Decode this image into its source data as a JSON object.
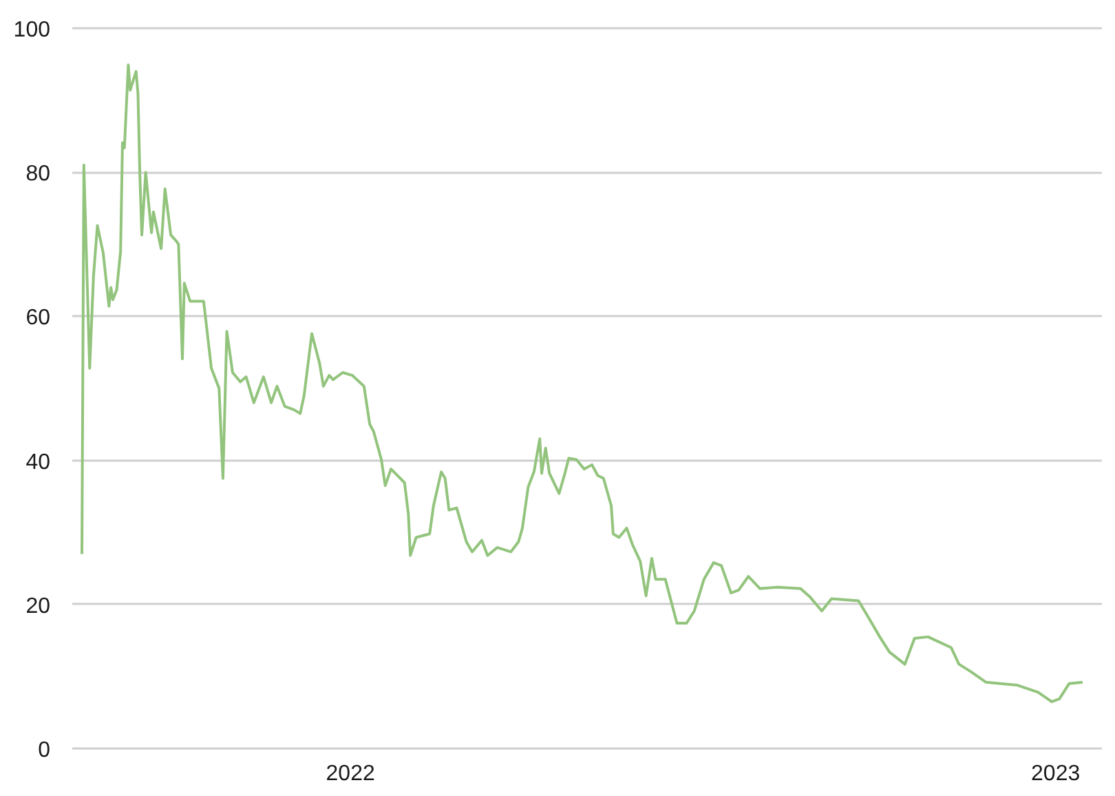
{
  "chart_data": {
    "type": "line",
    "x": [
      "2021-08-15",
      "2021-08-16",
      "2021-08-19",
      "2021-08-21",
      "2021-08-23",
      "2021-08-26",
      "2021-08-29",
      "2021-08-30",
      "2021-08-31",
      "2021-09-02",
      "2021-09-04",
      "2021-09-05",
      "2021-09-06",
      "2021-09-08",
      "2021-09-09",
      "2021-09-12",
      "2021-09-13",
      "2021-09-14",
      "2021-09-15",
      "2021-09-17",
      "2021-09-20",
      "2021-09-21",
      "2021-09-25",
      "2021-09-27",
      "2021-09-30",
      "2021-10-03",
      "2021-10-04",
      "2021-10-06",
      "2021-10-07",
      "2021-10-10",
      "2021-10-17",
      "2021-10-21",
      "2021-10-25",
      "2021-10-27",
      "2021-10-29",
      "2021-11-01",
      "2021-11-05",
      "2021-11-08",
      "2021-11-12",
      "2021-11-17",
      "2021-11-21",
      "2021-11-24",
      "2021-11-28",
      "2021-12-03",
      "2021-12-06",
      "2021-12-08",
      "2021-12-12",
      "2021-12-16",
      "2021-12-18",
      "2021-12-21",
      "2021-12-23",
      "2021-12-28",
      "2022-01-02",
      "2022-01-08",
      "2022-01-11",
      "2022-01-13",
      "2022-01-17",
      "2022-01-19",
      "2022-01-22",
      "2022-01-29",
      "2022-01-31",
      "2022-02-01",
      "2022-02-04",
      "2022-02-11",
      "2022-02-13",
      "2022-02-17",
      "2022-02-19",
      "2022-02-21",
      "2022-02-25",
      "2022-03-02",
      "2022-03-05",
      "2022-03-10",
      "2022-03-13",
      "2022-03-18",
      "2022-03-25",
      "2022-03-29",
      "2022-03-31",
      "2022-04-03",
      "2022-04-06",
      "2022-04-09",
      "2022-04-10",
      "2022-04-12",
      "2022-04-14",
      "2022-04-19",
      "2022-04-22",
      "2022-04-24",
      "2022-04-28",
      "2022-05-02",
      "2022-05-06",
      "2022-05-09",
      "2022-05-12",
      "2022-05-16",
      "2022-05-17",
      "2022-05-20",
      "2022-05-24",
      "2022-05-27",
      "2022-05-31",
      "2022-06-03",
      "2022-06-06",
      "2022-06-08",
      "2022-06-13",
      "2022-06-19",
      "2022-06-24",
      "2022-06-28",
      "2022-07-03",
      "2022-07-08",
      "2022-07-12",
      "2022-07-17",
      "2022-07-21",
      "2022-07-26",
      "2022-08-01",
      "2022-08-10",
      "2022-08-22",
      "2022-08-27",
      "2022-09-02",
      "2022-09-07",
      "2022-09-21",
      "2022-09-27",
      "2022-10-02",
      "2022-10-07",
      "2022-10-15",
      "2022-10-20",
      "2022-10-27",
      "2022-11-08",
      "2022-11-12",
      "2022-11-18",
      "2022-11-26",
      "2022-12-12",
      "2022-12-23",
      "2022-12-30",
      "2023-01-03",
      "2023-01-08",
      "2023-01-15"
    ],
    "values": [
      27.0,
      81.0,
      52.8,
      65.6,
      72.6,
      68.8,
      61.4,
      64.0,
      62.3,
      63.7,
      69.0,
      84.1,
      83.4,
      94.9,
      91.4,
      94.0,
      91.0,
      79.6,
      71.3,
      80.0,
      71.6,
      74.5,
      69.4,
      77.7,
      71.3,
      70.4,
      70.0,
      54.1,
      64.6,
      62.1,
      62.1,
      52.8,
      50.0,
      37.5,
      57.9,
      52.2,
      50.9,
      51.6,
      48.0,
      51.6,
      48.0,
      50.3,
      47.5,
      47.0,
      46.5,
      49.0,
      57.6,
      53.5,
      50.3,
      51.8,
      51.2,
      52.2,
      51.8,
      50.3,
      45.0,
      44.0,
      40.1,
      36.5,
      38.8,
      36.9,
      32.5,
      26.8,
      29.3,
      29.8,
      33.7,
      38.4,
      37.5,
      33.1,
      33.4,
      28.7,
      27.3,
      28.9,
      26.8,
      27.9,
      27.3,
      28.7,
      30.6,
      36.3,
      38.4,
      43.0,
      38.2,
      41.7,
      38.2,
      35.4,
      38.2,
      40.3,
      40.1,
      38.8,
      39.4,
      37.9,
      37.5,
      33.7,
      29.8,
      29.3,
      30.6,
      28.3,
      26.0,
      21.2,
      26.4,
      23.5,
      23.5,
      17.4,
      17.4,
      19.1,
      23.5,
      25.8,
      25.4,
      21.6,
      22.0,
      23.9,
      22.2,
      22.4,
      22.2,
      21.0,
      19.1,
      20.8,
      20.5,
      17.8,
      15.5,
      13.4,
      11.7,
      15.3,
      15.5,
      14.0,
      11.7,
      10.7,
      9.2,
      8.8,
      7.8,
      6.5,
      6.9,
      9.0,
      9.2
    ],
    "color": "#93c47d",
    "xlim": [
      "2021-08-10",
      "2023-01-25"
    ],
    "xticks": [
      {
        "value": "2022-01-01",
        "label": "2022"
      },
      {
        "value": "2023-01-01",
        "label": "2023"
      }
    ],
    "ylim": [
      0,
      100
    ],
    "yticks": [
      0,
      20,
      40,
      60,
      80,
      100
    ],
    "grid": "y"
  }
}
